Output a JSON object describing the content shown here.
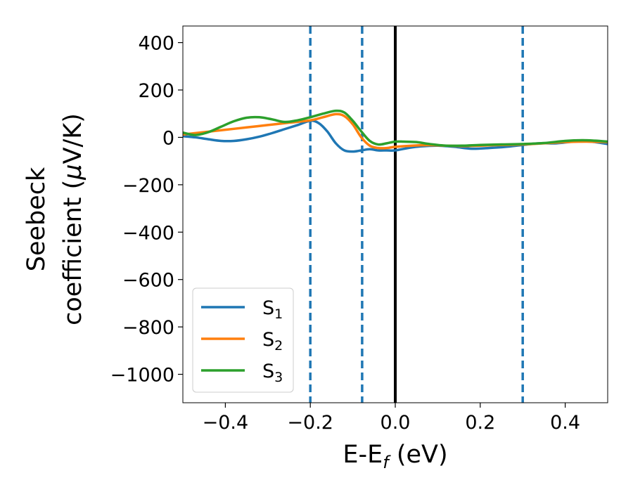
{
  "chart_data": {
    "type": "line",
    "xlabel": {
      "main": "E-E",
      "sub": "f",
      "tail": " (eV)"
    },
    "ylabel": {
      "line1": "Seebeck",
      "line2a": "coefficient  (",
      "mu": "μ",
      "line2b": "V/K)"
    },
    "xlim": [
      -0.5,
      0.5
    ],
    "ylim": [
      -1120,
      470
    ],
    "xticks": [
      -0.4,
      -0.2,
      0.0,
      0.2,
      0.4
    ],
    "xtick_labels": [
      "−0.4",
      "−0.2",
      "0.0",
      "0.2",
      "0.4"
    ],
    "yticks": [
      400,
      200,
      0,
      -200,
      -400,
      -600,
      -800,
      -1000
    ],
    "ytick_labels": [
      "400",
      "200",
      "0",
      "−200",
      "−400",
      "−600",
      "−800",
      "−1000"
    ],
    "legend_position": "lower-left",
    "vlines": [
      {
        "x": -0.2,
        "style": "dashed",
        "color": "#1f77b4"
      },
      {
        "x": -0.078,
        "style": "dashed",
        "color": "#1f77b4"
      },
      {
        "x": 0.0,
        "style": "solid",
        "color": "#000000"
      },
      {
        "x": 0.3,
        "style": "dashed",
        "color": "#1f77b4"
      }
    ],
    "series": [
      {
        "name": "S",
        "sub": "1",
        "color": "#1f77b4",
        "x": [
          -0.5,
          -0.47,
          -0.44,
          -0.41,
          -0.38,
          -0.35,
          -0.32,
          -0.29,
          -0.26,
          -0.23,
          -0.2,
          -0.18,
          -0.16,
          -0.14,
          -0.12,
          -0.1,
          -0.08,
          -0.06,
          -0.04,
          -0.02,
          0.0,
          0.03,
          0.06,
          0.1,
          0.14,
          0.18,
          0.22,
          0.26,
          0.3,
          0.34,
          0.38,
          0.42,
          0.46,
          0.5
        ],
        "y": [
          5,
          0,
          -8,
          -15,
          -15,
          -8,
          3,
          18,
          35,
          52,
          70,
          60,
          25,
          -25,
          -55,
          -60,
          -55,
          -50,
          -55,
          -55,
          -55,
          -45,
          -38,
          -35,
          -40,
          -48,
          -45,
          -40,
          -32,
          -25,
          -25,
          -18,
          -18,
          -28
        ]
      },
      {
        "name": "S",
        "sub": "2",
        "color": "#ff7f0e",
        "x": [
          -0.5,
          -0.45,
          -0.4,
          -0.35,
          -0.3,
          -0.25,
          -0.2,
          -0.17,
          -0.14,
          -0.12,
          -0.1,
          -0.08,
          -0.06,
          -0.04,
          -0.02,
          0.0,
          0.04,
          0.08,
          0.12,
          0.16,
          0.2,
          0.25,
          0.3,
          0.35,
          0.4,
          0.45,
          0.5
        ],
        "y": [
          12,
          22,
          32,
          42,
          52,
          62,
          72,
          85,
          98,
          90,
          55,
          0,
          -35,
          -45,
          -45,
          -40,
          -35,
          -33,
          -35,
          -37,
          -35,
          -32,
          -30,
          -25,
          -20,
          -18,
          -20
        ]
      },
      {
        "name": "S",
        "sub": "3",
        "color": "#2ca02c",
        "x": [
          -0.5,
          -0.47,
          -0.44,
          -0.41,
          -0.38,
          -0.35,
          -0.32,
          -0.29,
          -0.26,
          -0.23,
          -0.2,
          -0.17,
          -0.14,
          -0.12,
          -0.1,
          -0.08,
          -0.06,
          -0.04,
          -0.02,
          0.0,
          0.02,
          0.05,
          0.08,
          0.12,
          0.16,
          0.2,
          0.25,
          0.3,
          0.35,
          0.4,
          0.44,
          0.47,
          0.5
        ],
        "y": [
          20,
          10,
          22,
          45,
          68,
          83,
          85,
          76,
          65,
          72,
          85,
          100,
          112,
          105,
          70,
          25,
          -15,
          -30,
          -25,
          -18,
          -18,
          -20,
          -28,
          -35,
          -35,
          -32,
          -30,
          -28,
          -24,
          -15,
          -12,
          -14,
          -18
        ]
      }
    ]
  }
}
